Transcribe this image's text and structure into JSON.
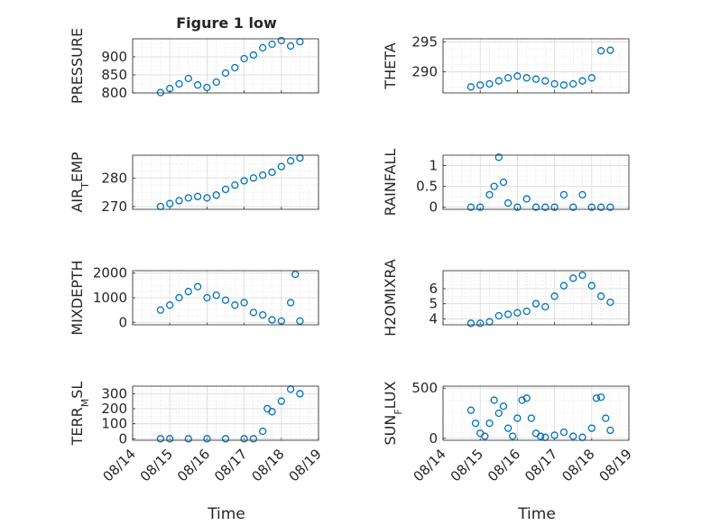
{
  "figure": {
    "title": "Figure 1 low",
    "xlabel": "Time"
  },
  "colors": {
    "marker": "#0072BD",
    "axis": "#262626",
    "grid": "#d9d9d9",
    "background": "#ffffff"
  },
  "chart_data": [
    {
      "type": "scatter",
      "ylabel": "PRESSURE",
      "ylim": [
        800,
        950
      ],
      "yticks": [
        800,
        850,
        900
      ],
      "x": [
        "08/14 18:00",
        "08/15 00:00",
        "08/15 06:00",
        "08/15 12:00",
        "08/15 18:00",
        "08/16 00:00",
        "08/16 06:00",
        "08/16 12:00",
        "08/16 18:00",
        "08/17 00:00",
        "08/17 06:00",
        "08/17 12:00",
        "08/17 18:00",
        "08/18 00:00",
        "08/18 06:00",
        "08/18 12:00"
      ],
      "y": [
        801,
        812,
        825,
        840,
        822,
        815,
        830,
        855,
        870,
        895,
        905,
        925,
        935,
        945,
        930,
        942
      ]
    },
    {
      "type": "scatter",
      "ylabel": "THETA",
      "ylim": [
        286.5,
        295.5
      ],
      "yticks": [
        290,
        295
      ],
      "x": [
        "08/14 18:00",
        "08/15 00:00",
        "08/15 06:00",
        "08/15 12:00",
        "08/15 18:00",
        "08/16 00:00",
        "08/16 06:00",
        "08/16 12:00",
        "08/16 18:00",
        "08/17 00:00",
        "08/17 06:00",
        "08/17 12:00",
        "08/17 18:00",
        "08/18 00:00",
        "08/18 06:00",
        "08/18 12:00"
      ],
      "y": [
        287.5,
        287.8,
        288.0,
        288.5,
        289.0,
        289.3,
        289.0,
        288.8,
        288.5,
        288.0,
        287.8,
        288.0,
        288.5,
        289.0,
        293.5,
        293.6
      ]
    },
    {
      "type": "scatter",
      "ylabel": "AIR_TEMP",
      "ylim": [
        269,
        288
      ],
      "yticks": [
        270,
        280
      ],
      "x": [
        "08/14 18:00",
        "08/15 00:00",
        "08/15 06:00",
        "08/15 12:00",
        "08/15 18:00",
        "08/16 00:00",
        "08/16 06:00",
        "08/16 12:00",
        "08/16 18:00",
        "08/17 00:00",
        "08/17 06:00",
        "08/17 12:00",
        "08/17 18:00",
        "08/18 00:00",
        "08/18 06:00",
        "08/18 12:00"
      ],
      "y": [
        270,
        271,
        272,
        273,
        273.5,
        273,
        274,
        276,
        277.5,
        279,
        280,
        281,
        282,
        284,
        286,
        287
      ]
    },
    {
      "type": "scatter",
      "ylabel": "RAINFALL",
      "ylim": [
        -0.05,
        1.25
      ],
      "yticks": [
        0,
        0.5,
        1
      ],
      "x": [
        "08/14 18:00",
        "08/15 00:00",
        "08/15 06:00",
        "08/15 09:00",
        "08/15 12:00",
        "08/15 15:00",
        "08/15 18:00",
        "08/16 00:00",
        "08/16 06:00",
        "08/16 12:00",
        "08/16 18:00",
        "08/17 00:00",
        "08/17 06:00",
        "08/17 12:00",
        "08/17 18:00",
        "08/18 00:00",
        "08/18 06:00",
        "08/18 12:00"
      ],
      "y": [
        0,
        0,
        0.3,
        0.5,
        1.2,
        0.6,
        0.1,
        0,
        0.2,
        0,
        0,
        0,
        0.3,
        0,
        0.3,
        0,
        0,
        0
      ]
    },
    {
      "type": "scatter",
      "ylabel": "MIXDEPTH",
      "ylim": [
        -100,
        2100
      ],
      "yticks": [
        0,
        1000,
        2000
      ],
      "x": [
        "08/14 18:00",
        "08/15 00:00",
        "08/15 06:00",
        "08/15 12:00",
        "08/15 18:00",
        "08/16 00:00",
        "08/16 06:00",
        "08/16 12:00",
        "08/16 18:00",
        "08/17 00:00",
        "08/17 06:00",
        "08/17 12:00",
        "08/17 18:00",
        "08/18 00:00",
        "08/18 06:00",
        "08/18 09:00",
        "08/18 12:00"
      ],
      "y": [
        500,
        700,
        1000,
        1250,
        1450,
        1000,
        1100,
        900,
        700,
        800,
        400,
        300,
        100,
        50,
        800,
        1950,
        50
      ]
    },
    {
      "type": "scatter",
      "ylabel": "H2OMIXRA",
      "ylim": [
        3.6,
        7.2
      ],
      "yticks": [
        4,
        5,
        6
      ],
      "x": [
        "08/14 18:00",
        "08/15 00:00",
        "08/15 06:00",
        "08/15 12:00",
        "08/15 18:00",
        "08/16 00:00",
        "08/16 06:00",
        "08/16 12:00",
        "08/16 18:00",
        "08/17 00:00",
        "08/17 06:00",
        "08/17 12:00",
        "08/17 18:00",
        "08/18 00:00",
        "08/18 06:00",
        "08/18 12:00"
      ],
      "y": [
        3.7,
        3.7,
        3.8,
        4.2,
        4.3,
        4.4,
        4.5,
        5.0,
        4.8,
        5.5,
        6.2,
        6.7,
        6.9,
        6.2,
        5.5,
        5.1
      ]
    },
    {
      "type": "scatter",
      "ylabel": "TERR_MSL",
      "ylim": [
        -10,
        350
      ],
      "yticks": [
        0,
        100,
        200,
        300
      ],
      "x": [
        "08/14 18:00",
        "08/15 00:00",
        "08/15 12:00",
        "08/16 00:00",
        "08/16 12:00",
        "08/17 00:00",
        "08/17 06:00",
        "08/17 12:00",
        "08/17 15:00",
        "08/17 18:00",
        "08/18 00:00",
        "08/18 06:00",
        "08/18 12:00"
      ],
      "y": [
        0,
        0,
        0,
        0,
        0,
        0,
        0,
        50,
        200,
        180,
        250,
        330,
        300
      ]
    },
    {
      "type": "scatter",
      "ylabel": "SUN_FLUX",
      "ylim": [
        -20,
        520
      ],
      "yticks": [
        0,
        500
      ],
      "x": [
        "08/14 18:00",
        "08/14 21:00",
        "08/15 00:00",
        "08/15 03:00",
        "08/15 06:00",
        "08/15 09:00",
        "08/15 12:00",
        "08/15 15:00",
        "08/15 18:00",
        "08/15 21:00",
        "08/16 00:00",
        "08/16 03:00",
        "08/16 06:00",
        "08/16 09:00",
        "08/16 12:00",
        "08/16 15:00",
        "08/16 18:00",
        "08/17 00:00",
        "08/17 06:00",
        "08/17 12:00",
        "08/17 18:00",
        "08/18 00:00",
        "08/18 03:00",
        "08/18 06:00",
        "08/18 09:00",
        "08/18 12:00"
      ],
      "y": [
        280,
        150,
        50,
        20,
        150,
        380,
        250,
        320,
        100,
        20,
        200,
        380,
        400,
        200,
        50,
        20,
        10,
        30,
        60,
        20,
        10,
        100,
        400,
        410,
        200,
        80
      ]
    }
  ],
  "x_axis": {
    "ticks": [
      "08/14",
      "08/15",
      "08/16",
      "08/17",
      "08/18",
      "08/19"
    ],
    "range": [
      "08/14",
      "08/19"
    ]
  }
}
